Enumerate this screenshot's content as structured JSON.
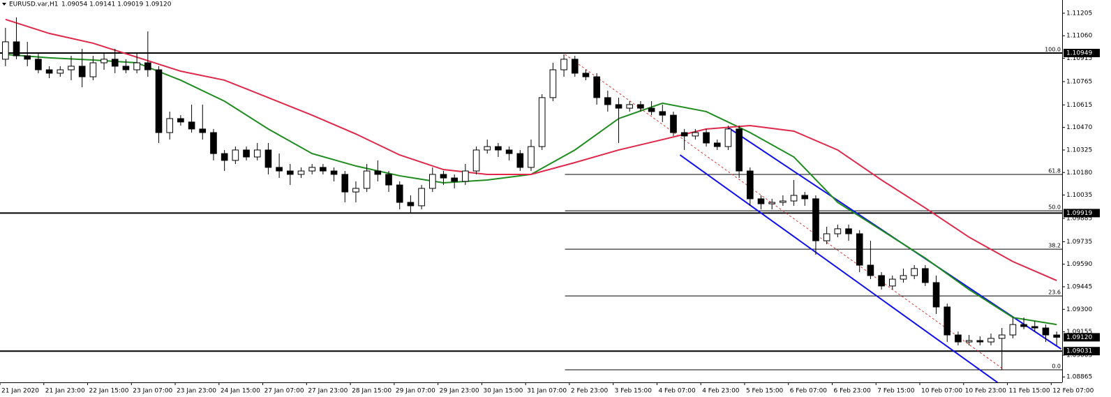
{
  "chart_data": {
    "type": "candlestick",
    "title": "EURUSD.var,H1",
    "ohlc_text": "1.09054 1.09141 1.09019 1.09120",
    "categories": [
      "21 Jan 2020",
      null,
      null,
      null,
      "21 Jan 23:00",
      null,
      null,
      null,
      "22 Jan 15:00",
      null,
      null,
      null,
      "23 Jan 07:00",
      null,
      null,
      null,
      "23 Jan 23:00",
      null,
      null,
      null,
      "24 Jan 15:00",
      null,
      null,
      null,
      "27 Jan 07:00",
      null,
      null,
      null,
      "27 Jan 23:00",
      null,
      null,
      null,
      "28 Jan 15:00",
      null,
      null,
      null,
      "29 Jan 07:00",
      null,
      null,
      null,
      "29 Jan 23:00",
      null,
      null,
      null,
      "30 Jan 15:00",
      null,
      null,
      null,
      "31 Jan 07:00",
      null,
      null,
      null,
      "2 Feb 23:00",
      null,
      null,
      null,
      "3 Feb 15:00",
      null,
      null,
      null,
      "4 Feb 07:00",
      null,
      null,
      null,
      "4 Feb 23:00",
      null,
      null,
      null,
      "5 Feb 15:00",
      null,
      null,
      null,
      "6 Feb 07:00",
      null,
      null,
      null,
      "6 Feb 23:00",
      null,
      null,
      null,
      "7 Feb 15:00",
      null,
      null,
      null,
      "10 Feb 07:00",
      null,
      null,
      null,
      "10 Feb 23:00",
      null,
      null,
      null,
      "11 Feb 15:00",
      null,
      null,
      null,
      "12 Feb 07:00"
    ],
    "open": [
      1.10909,
      1.11021,
      1.10931,
      1.10909,
      1.10841,
      1.10819,
      1.10841,
      1.10864,
      1.10796,
      1.10886,
      1.10909,
      1.10864,
      1.10841,
      1.10886,
      1.10841,
      1.10437,
      1.10527,
      1.10505,
      1.1046,
      1.10437,
      1.10302,
      1.10258,
      1.10325,
      1.1028,
      1.10325,
      1.10213,
      1.1019,
      1.10168,
      1.1019,
      1.10213,
      1.1019,
      1.10168,
      1.10055,
      1.10078,
      1.1019,
      1.10168,
      1.101,
      1.09988,
      1.09966,
      1.10078,
      1.10168,
      1.10145,
      1.10123,
      1.1019,
      1.10325,
      1.10347,
      1.10325,
      1.10302,
      1.10213,
      1.10347,
      1.10662,
      1.10841,
      1.10909,
      1.10819,
      1.10796,
      1.10662,
      1.10617,
      1.10594,
      1.10617,
      1.10594,
      1.10572,
      1.10549,
      1.10437,
      1.10415,
      1.10437,
      1.1037,
      1.10347,
      1.1046,
      1.1019,
      1.10011,
      1.09979,
      1.09988,
      1.09997,
      1.10033,
      1.10011,
      1.09741,
      1.09786,
      1.09818,
      1.09786,
      1.09584,
      1.09517,
      1.0945,
      1.09494,
      1.09517,
      1.09562,
      1.09472,
      1.09315,
      1.09135,
      1.0909,
      1.09099,
      1.0909,
      1.09113,
      1.09135,
      1.09202,
      1.09189,
      1.0918,
      1.09135
    ],
    "high": [
      1.11111,
      1.11178,
      1.11021,
      1.10953,
      1.10864,
      1.10864,
      1.10931,
      1.10976,
      1.10931,
      1.10953,
      1.10976,
      1.10909,
      1.10953,
      1.11088,
      1.10864,
      1.10572,
      1.10549,
      1.10617,
      1.10617,
      1.1046,
      1.10325,
      1.10347,
      1.10347,
      1.1037,
      1.1037,
      1.10302,
      1.10235,
      1.10213,
      1.10235,
      1.10235,
      1.10213,
      1.1019,
      1.10123,
      1.10235,
      1.10258,
      1.1019,
      1.10123,
      1.10033,
      1.101,
      1.10213,
      1.1019,
      1.10168,
      1.10235,
      1.10347,
      1.10392,
      1.1037,
      1.10347,
      1.10325,
      1.10392,
      1.10684,
      1.10886,
      1.1094,
      1.10931,
      1.10841,
      1.10819,
      1.10707,
      1.10662,
      1.10639,
      1.10639,
      1.10639,
      1.10617,
      1.10572,
      1.1046,
      1.1046,
      1.1046,
      1.10392,
      1.10482,
      1.10482,
      1.10213,
      1.10033,
      1.10011,
      1.10033,
      1.10132,
      1.10055,
      1.10033,
      1.09831,
      1.09845,
      1.09845,
      1.09809,
      1.09741,
      1.09539,
      1.09517,
      1.09562,
      1.09584,
      1.09584,
      1.09517,
      1.09337,
      1.09157,
      1.09135,
      1.09126,
      1.09144,
      1.0918,
      1.09247,
      1.09247,
      1.09225,
      1.09202,
      1.09157
    ],
    "low": [
      1.10864,
      1.10909,
      1.10864,
      1.10819,
      1.10787,
      1.10796,
      1.10774,
      1.10729,
      1.10774,
      1.10841,
      1.10819,
      1.10819,
      1.10819,
      1.10796,
      1.1037,
      1.10392,
      1.10482,
      1.10437,
      1.10392,
      1.10258,
      1.1019,
      1.10235,
      1.10258,
      1.10258,
      1.10168,
      1.10145,
      1.101,
      1.10145,
      1.10168,
      1.10168,
      1.10123,
      1.09988,
      1.09988,
      1.10055,
      1.10123,
      1.10055,
      1.09943,
      1.09921,
      1.09943,
      1.10055,
      1.101,
      1.10078,
      1.101,
      1.10168,
      1.10302,
      1.1028,
      1.10258,
      1.1019,
      1.1019,
      1.10325,
      1.10639,
      1.10796,
      1.10796,
      1.10774,
      1.10617,
      1.10572,
      1.1037,
      1.10572,
      1.10572,
      1.10549,
      1.10505,
      1.10415,
      1.10325,
      1.10392,
      1.10347,
      1.10325,
      1.10325,
      1.10145,
      1.09966,
      1.09943,
      1.09943,
      1.09966,
      1.09966,
      1.09966,
      1.09651,
      1.09719,
      1.09764,
      1.09741,
      1.09539,
      1.09494,
      1.09427,
      1.09427,
      1.09472,
      1.09494,
      1.0945,
      1.0927,
      1.0909,
      1.09068,
      1.09068,
      1.09068,
      1.09068,
      1.08911,
      1.09113,
      1.09171,
      1.09157,
      1.0909,
      1.09068
    ],
    "close": [
      1.11021,
      1.10931,
      1.10909,
      1.10841,
      1.10819,
      1.10841,
      1.10864,
      1.10796,
      1.10886,
      1.10909,
      1.10864,
      1.10841,
      1.10886,
      1.10841,
      1.10437,
      1.10527,
      1.10505,
      1.1046,
      1.10437,
      1.10302,
      1.10258,
      1.10325,
      1.1028,
      1.10325,
      1.10213,
      1.1019,
      1.10168,
      1.1019,
      1.10213,
      1.1019,
      1.10168,
      1.10055,
      1.10078,
      1.1019,
      1.10168,
      1.101,
      1.09988,
      1.09966,
      1.10078,
      1.10168,
      1.10145,
      1.10123,
      1.1019,
      1.10325,
      1.10347,
      1.10325,
      1.10302,
      1.10213,
      1.10347,
      1.10662,
      1.10841,
      1.10909,
      1.10819,
      1.10796,
      1.10662,
      1.10617,
      1.10594,
      1.10617,
      1.10594,
      1.10572,
      1.10549,
      1.10437,
      1.10415,
      1.10437,
      1.1037,
      1.10347,
      1.1046,
      1.1019,
      1.10011,
      1.09979,
      1.09988,
      1.09997,
      1.10033,
      1.10011,
      1.09741,
      1.09786,
      1.09818,
      1.09786,
      1.09584,
      1.09517,
      1.0945,
      1.09494,
      1.09517,
      1.09562,
      1.09472,
      1.09315,
      1.09135,
      1.0909,
      1.09099,
      1.0909,
      1.09113,
      1.09135,
      1.09202,
      1.09189,
      1.0918,
      1.09135,
      1.0912
    ],
    "up_color": "#ffffff",
    "down_color": "#000000",
    "ylim": [
      1.0883,
      1.1129
    ],
    "yticks": [
      1.11205,
      {
        "value": 1.1106,
        "label": "1.11060"
      },
      1.10915,
      1.10765,
      1.10615,
      {
        "value": 1.1047,
        "label": "1.10470"
      },
      1.10325,
      {
        "value": 1.1018,
        "label": "1.10180"
      },
      1.10035,
      1.09885,
      1.09735,
      {
        "value": 1.0959,
        "label": "1.09590"
      },
      1.09445,
      {
        "value": 1.093,
        "label": "1.09300"
      },
      1.09155,
      1.09005,
      1.08865
    ],
    "moving_averages": {
      "x": [
        0,
        4,
        8,
        12,
        16,
        20,
        24,
        28,
        32,
        36,
        40,
        44,
        48,
        52,
        56,
        60,
        64,
        68,
        72,
        76,
        80,
        84,
        88,
        92,
        96
      ],
      "series": [
        {
          "color": "#1e8c1e",
          "values": [
            1.1094,
            1.10918,
            1.10904,
            1.10886,
            1.10774,
            1.10639,
            1.1046,
            1.10302,
            1.10222,
            1.10159,
            1.10114,
            1.10132,
            1.10168,
            1.10325,
            1.10527,
            1.10626,
            1.10572,
            1.10437,
            1.1028,
            1.09988,
            1.09809,
            1.09629,
            1.09427,
            1.09247,
            1.09202
          ]
        },
        {
          "color": "#e0284a",
          "values": [
            1.11165,
            1.11075,
            1.11012,
            1.10922,
            1.10832,
            1.10774,
            1.10662,
            1.10549,
            1.10428,
            1.10293,
            1.10199,
            1.10168,
            1.10168,
            1.10244,
            1.10325,
            1.10392,
            1.1046,
            1.10482,
            1.10446,
            1.10325,
            1.10132,
            1.09952,
            1.09764,
            1.09607,
            1.09485
          ]
        }
      ]
    },
    "hlines": {
      "color": "#000000",
      "values": [
        1.10949,
        1.09919,
        1.09031
      ]
    },
    "last_price": {
      "value": 1.0912,
      "label": "1.09120"
    },
    "channel": {
      "color": "#1010ee",
      "lines": [
        {
          "x": [
            66,
            96.4
          ],
          "y": [
            1.10469,
            1.09045
          ]
        },
        {
          "x": [
            61.6,
            90.6
          ],
          "y": [
            1.10293,
            1.08829
          ]
        }
      ]
    },
    "fib_trend": {
      "color": "#e0302a",
      "x": [
        51.1,
        91.2
      ],
      "y": [
        1.1094,
        1.08911
      ]
    },
    "fib": {
      "color": "#000000",
      "levels": [
        {
          "value": 1.10949,
          "label": "100.0"
        },
        {
          "value": 1.10168,
          "label": "61.8"
        },
        {
          "value": 1.09934,
          "label": "50.0"
        },
        {
          "value": 1.09687,
          "label": "38.2"
        },
        {
          "value": 1.09386,
          "label": "23.6"
        },
        {
          "value": 1.08911,
          "label": "0.0"
        }
      ]
    }
  }
}
